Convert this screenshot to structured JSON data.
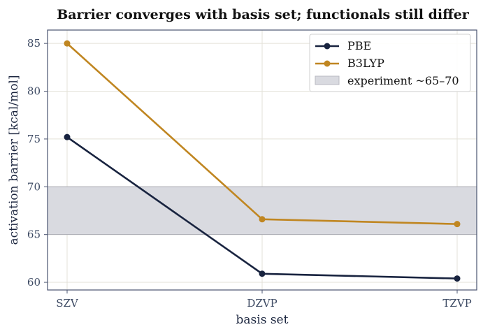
{
  "chart_data": {
    "type": "line",
    "title": "Barrier converges with basis set; functionals still differ",
    "xlabel": "basis set",
    "ylabel": "activation barrier  [kcal/mol]",
    "categories": [
      "SZV",
      "DZVP",
      "TZVP"
    ],
    "ylim": [
      59.2,
      86.4
    ],
    "yticks": [
      60,
      65,
      70,
      75,
      80,
      85
    ],
    "grid": true,
    "legend_position": "top-right",
    "series": [
      {
        "name": "PBE",
        "values": [
          75.2,
          60.9,
          60.4
        ],
        "color": "#18233f"
      },
      {
        "name": "B3LYP",
        "values": [
          85.0,
          66.6,
          66.1
        ],
        "color": "#c08621"
      }
    ],
    "band": {
      "name": "experiment ~65–70",
      "range": [
        65,
        70
      ],
      "color": "#d9dae0"
    }
  }
}
